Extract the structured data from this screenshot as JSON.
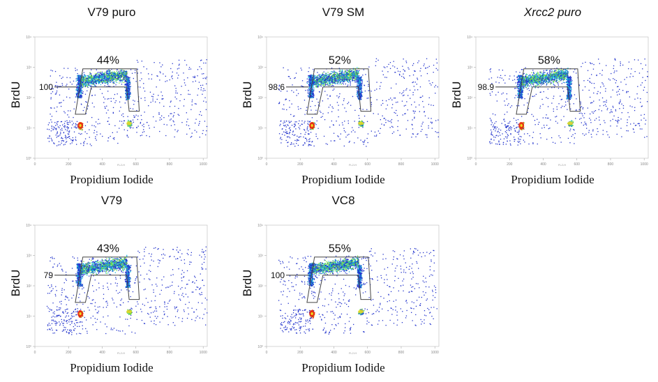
{
  "chart_data": [
    {
      "type": "scatter",
      "title": "V79 puro",
      "title_italic": false,
      "ylabel": "BrdU",
      "xlabel": "Propidium Iodide",
      "xlim": [
        0,
        1024
      ],
      "ylog": true,
      "ylim": [
        1,
        10000
      ],
      "x_ticks": [
        "0",
        "200",
        "400",
        "600",
        "800",
        "1000"
      ],
      "y_ticks": [
        "10⁰",
        "10¹",
        "10²",
        "10³",
        "10⁴"
      ],
      "axis_caption": "FL2-H",
      "gate_label": "100",
      "gate_percent": "44%"
    },
    {
      "type": "scatter",
      "title": "V79 SM",
      "title_italic": false,
      "ylabel": "BrdU",
      "xlabel": "Propidium Iodide",
      "xlim": [
        0,
        1024
      ],
      "ylog": true,
      "ylim": [
        1,
        10000
      ],
      "x_ticks": [
        "0",
        "200",
        "400",
        "600",
        "800",
        "1000"
      ],
      "y_ticks": [
        "10⁰",
        "10¹",
        "10²",
        "10³",
        "10⁴"
      ],
      "axis_caption": "FL2-H",
      "gate_label": "98.6",
      "gate_percent": "52%"
    },
    {
      "type": "scatter",
      "title": "Xrcc2 puro",
      "title_italic": true,
      "ylabel": "BrdU",
      "xlabel": "Propidium Iodide",
      "xlim": [
        0,
        1024
      ],
      "ylog": true,
      "ylim": [
        1,
        10000
      ],
      "x_ticks": [
        "0",
        "200",
        "400",
        "600",
        "800",
        "1000"
      ],
      "y_ticks": [
        "10⁰",
        "10¹",
        "10²",
        "10³",
        "10⁴"
      ],
      "axis_caption": "FL2-H",
      "gate_label": "98.9",
      "gate_percent": "58%"
    },
    {
      "type": "scatter",
      "title": "V79",
      "title_italic": false,
      "ylabel": "BrdU",
      "xlabel": "Propidium Iodide",
      "xlim": [
        0,
        1024
      ],
      "ylog": true,
      "ylim": [
        1,
        10000
      ],
      "x_ticks": [
        "0",
        "200",
        "400",
        "600",
        "800",
        "1000"
      ],
      "y_ticks": [
        "10⁰",
        "10¹",
        "10²",
        "10³",
        "10⁴"
      ],
      "axis_caption": "FL2-H",
      "gate_label": "79",
      "gate_percent": "43%"
    },
    {
      "type": "scatter",
      "title": "VC8",
      "title_italic": false,
      "ylabel": "BrdU",
      "xlabel": "Propidium Iodide",
      "xlim": [
        0,
        1024
      ],
      "ylog": true,
      "ylim": [
        1,
        10000
      ],
      "x_ticks": [
        "0",
        "200",
        "400",
        "600",
        "800",
        "1000"
      ],
      "y_ticks": [
        "10⁰",
        "10¹",
        "10²",
        "10³",
        "10⁴"
      ],
      "axis_caption": "FL2-H",
      "gate_label": "100",
      "gate_percent": "55%"
    }
  ],
  "colors": {
    "sparse": "#2233cc",
    "mid": "#19b3d9",
    "dense": "#6fdc3a",
    "core": "#f0e020",
    "hot": "#e82a12",
    "gate": "#444444"
  }
}
